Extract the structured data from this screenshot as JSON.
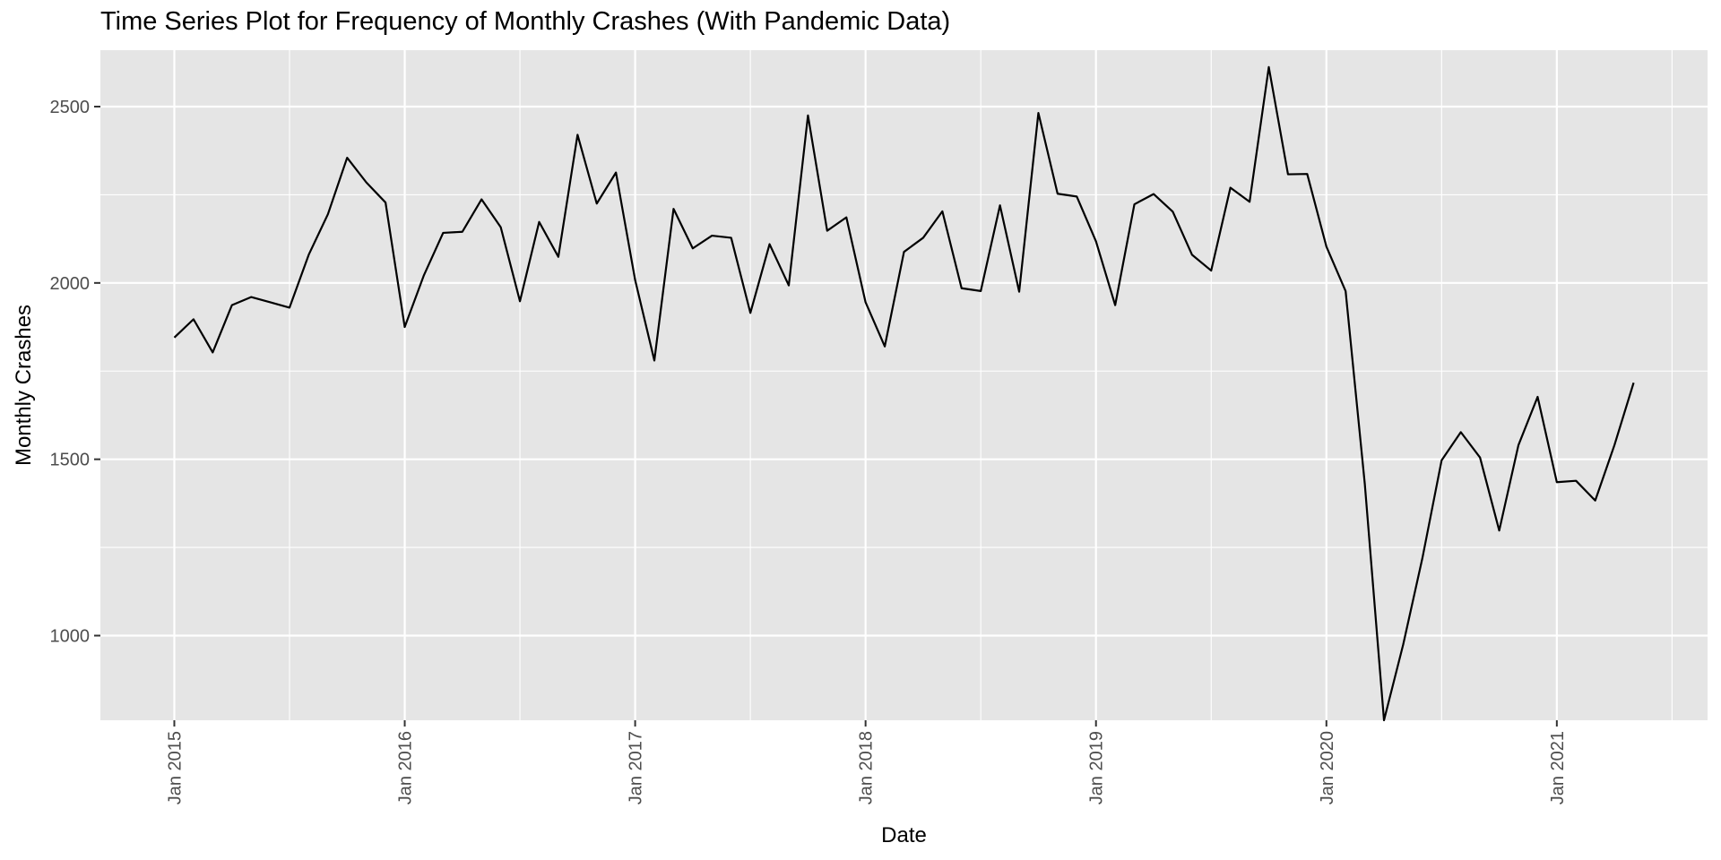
{
  "chart_data": {
    "type": "line",
    "title": "Time Series Plot for Frequency of Monthly Crashes (With Pandemic Data)",
    "xlabel": "Date",
    "ylabel": "Monthly Crashes",
    "x_start": "2015-01",
    "x_ticks": [
      "Jan 2015",
      "Jan 2016",
      "Jan 2017",
      "Jan 2018",
      "Jan 2019",
      "Jan 2020",
      "Jan 2021"
    ],
    "y_ticks": [
      1000,
      1500,
      2000,
      2500
    ],
    "ylim": [
      760,
      2660
    ],
    "grid": true,
    "background": "#e5e5e5",
    "grid_color": "#ffffff",
    "line_color": "#000000",
    "series": [
      {
        "values": [
          1845,
          1897,
          1803,
          1937,
          1960,
          1945,
          1930,
          2080,
          2195,
          2355,
          2285,
          2228,
          1875,
          2022,
          2142,
          2145,
          2237,
          2158,
          1948,
          2173,
          2074,
          2420,
          2225,
          2313,
          2008,
          1780,
          2210,
          2098,
          2134,
          2128,
          1915,
          2110,
          1993,
          2475,
          2148,
          2186,
          1945,
          1820,
          2088,
          2128,
          2203,
          1985,
          1977,
          2220,
          1975,
          2482,
          2253,
          2245,
          2118,
          1937,
          2223,
          2252,
          2202,
          2080,
          2035,
          2270,
          2230,
          2612,
          2308,
          2309,
          2103,
          1977,
          1430,
          760,
          975,
          1220,
          1497,
          1577,
          1505,
          1298,
          1540,
          1677,
          1435,
          1439,
          1383,
          1540,
          1717
        ]
      }
    ]
  }
}
